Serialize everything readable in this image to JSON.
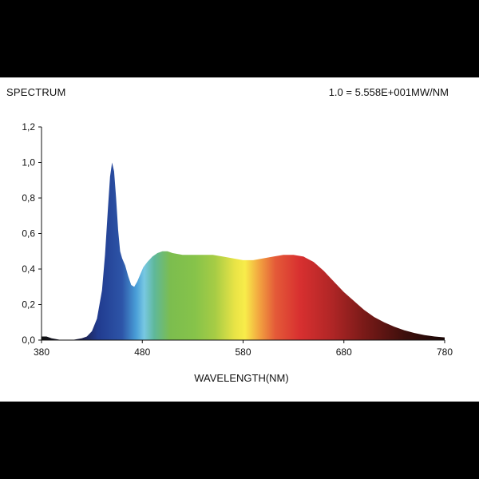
{
  "chart_data": {
    "type": "area",
    "title": "SPECTRUM",
    "annotation": "1.0 = 5.558E+001MW/NM",
    "xlabel": "WAVELENGTH(NM)",
    "ylabel": "",
    "xlim": [
      380,
      780
    ],
    "ylim": [
      0,
      1.2
    ],
    "x_ticks": [
      380,
      480,
      580,
      680,
      780
    ],
    "x_tick_labels": [
      "380",
      "480",
      "580",
      "680",
      "780"
    ],
    "y_ticks": [
      0,
      0.2,
      0.4,
      0.6,
      0.8,
      1.0,
      1.2
    ],
    "y_tick_labels": [
      "0,0",
      "0,2",
      "0,4",
      "0,6",
      "0,8",
      "1,0",
      "1,2"
    ],
    "fill": "visible-spectrum color gradient",
    "grid": false,
    "series": [
      {
        "x": [
          380,
          385,
          390,
          400,
          410,
          420,
          425,
          430,
          435,
          440,
          443,
          446,
          448,
          450,
          452,
          454,
          456,
          458,
          460,
          463,
          466,
          469,
          472,
          475,
          478,
          481,
          485,
          490,
          495,
          500,
          505,
          510,
          520,
          530,
          540,
          550,
          560,
          570,
          580,
          590,
          600,
          610,
          620,
          630,
          640,
          650,
          660,
          670,
          680,
          690,
          700,
          710,
          720,
          730,
          740,
          750,
          760,
          770,
          780
        ],
        "y": [
          0.02,
          0.02,
          0.01,
          0.0,
          0.0,
          0.01,
          0.02,
          0.05,
          0.12,
          0.28,
          0.48,
          0.75,
          0.92,
          1.0,
          0.95,
          0.8,
          0.62,
          0.5,
          0.46,
          0.42,
          0.36,
          0.31,
          0.3,
          0.33,
          0.37,
          0.41,
          0.44,
          0.47,
          0.49,
          0.5,
          0.5,
          0.49,
          0.48,
          0.48,
          0.48,
          0.48,
          0.47,
          0.46,
          0.45,
          0.45,
          0.46,
          0.47,
          0.48,
          0.48,
          0.47,
          0.44,
          0.39,
          0.33,
          0.27,
          0.22,
          0.17,
          0.13,
          0.1,
          0.075,
          0.055,
          0.04,
          0.028,
          0.02,
          0.015
        ]
      }
    ]
  }
}
